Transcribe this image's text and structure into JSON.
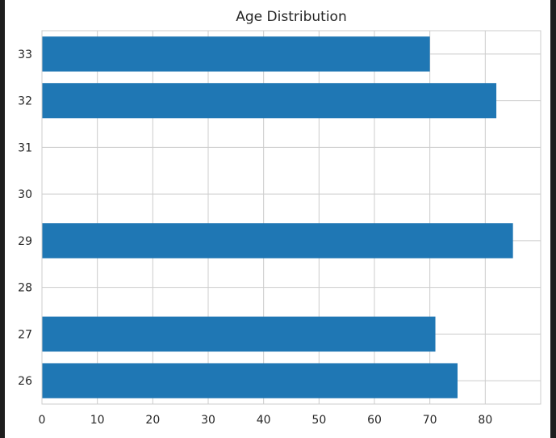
{
  "chart_data": {
    "type": "bar",
    "orientation": "horizontal",
    "title": "Age Distribution",
    "xlabel": "",
    "ylabel": "",
    "categories": [
      "26",
      "27",
      "28",
      "29",
      "30",
      "31",
      "32",
      "33"
    ],
    "values": [
      75,
      71,
      0,
      85,
      0,
      0,
      82,
      70
    ],
    "xlim": [
      0,
      90
    ],
    "xticks": [
      0,
      10,
      20,
      30,
      40,
      50,
      60,
      70,
      80
    ],
    "grid": true,
    "bar_color": "#1f77b4",
    "grid_color": "#cccccc"
  }
}
